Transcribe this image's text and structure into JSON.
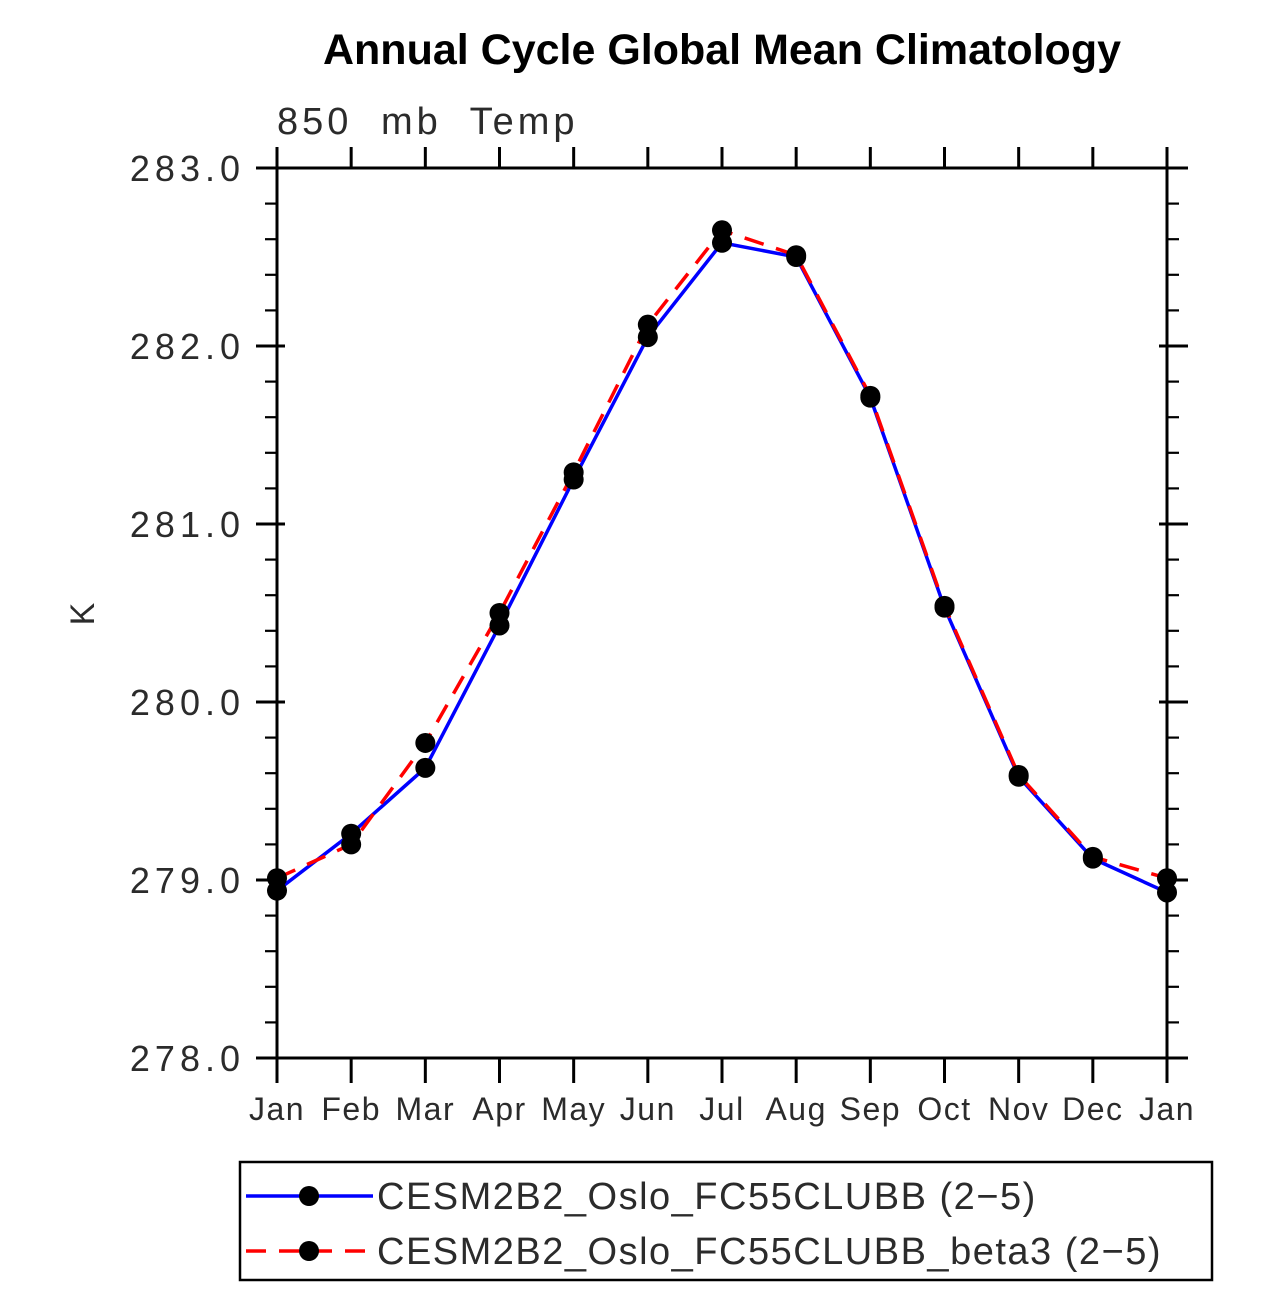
{
  "chart_data": {
    "type": "line",
    "title": "Annual Cycle Global Mean Climatology",
    "left_axis_title": "850 mb Temp",
    "ylabel": "K",
    "xlabel": "",
    "x_categories": [
      "Jan",
      "Feb",
      "Mar",
      "Apr",
      "May",
      "Jun",
      "Jul",
      "Aug",
      "Sep",
      "Oct",
      "Nov",
      "Dec",
      "Jan"
    ],
    "ylim": [
      278.0,
      283.0
    ],
    "y_major_step": 1.0,
    "y_minor_step": 0.2,
    "y_tick_labels": [
      "283.0",
      "282.0",
      "281.0",
      "280.0",
      "279.0",
      "278.0"
    ],
    "grid": "off",
    "legend_position": "bottom",
    "marker": "filled-circle",
    "series": [
      {
        "name": "CESM2B2_Oslo_FC55CLUBB (2−5)",
        "color": "#0000ff",
        "line_style": "solid",
        "marker_color": "#000000",
        "values": [
          278.94,
          279.26,
          279.63,
          280.43,
          281.25,
          282.05,
          282.58,
          282.5,
          281.71,
          280.53,
          279.58,
          279.12,
          278.93
        ]
      },
      {
        "name": "CESM2B2_Oslo_FC55CLUBB_beta3 (2−5)",
        "color": "#ff0000",
        "line_style": "dashed",
        "marker_color": "#000000",
        "values": [
          279.01,
          279.2,
          279.77,
          280.5,
          281.29,
          282.12,
          282.65,
          282.51,
          281.72,
          280.54,
          279.59,
          279.13,
          279.01
        ]
      }
    ]
  }
}
